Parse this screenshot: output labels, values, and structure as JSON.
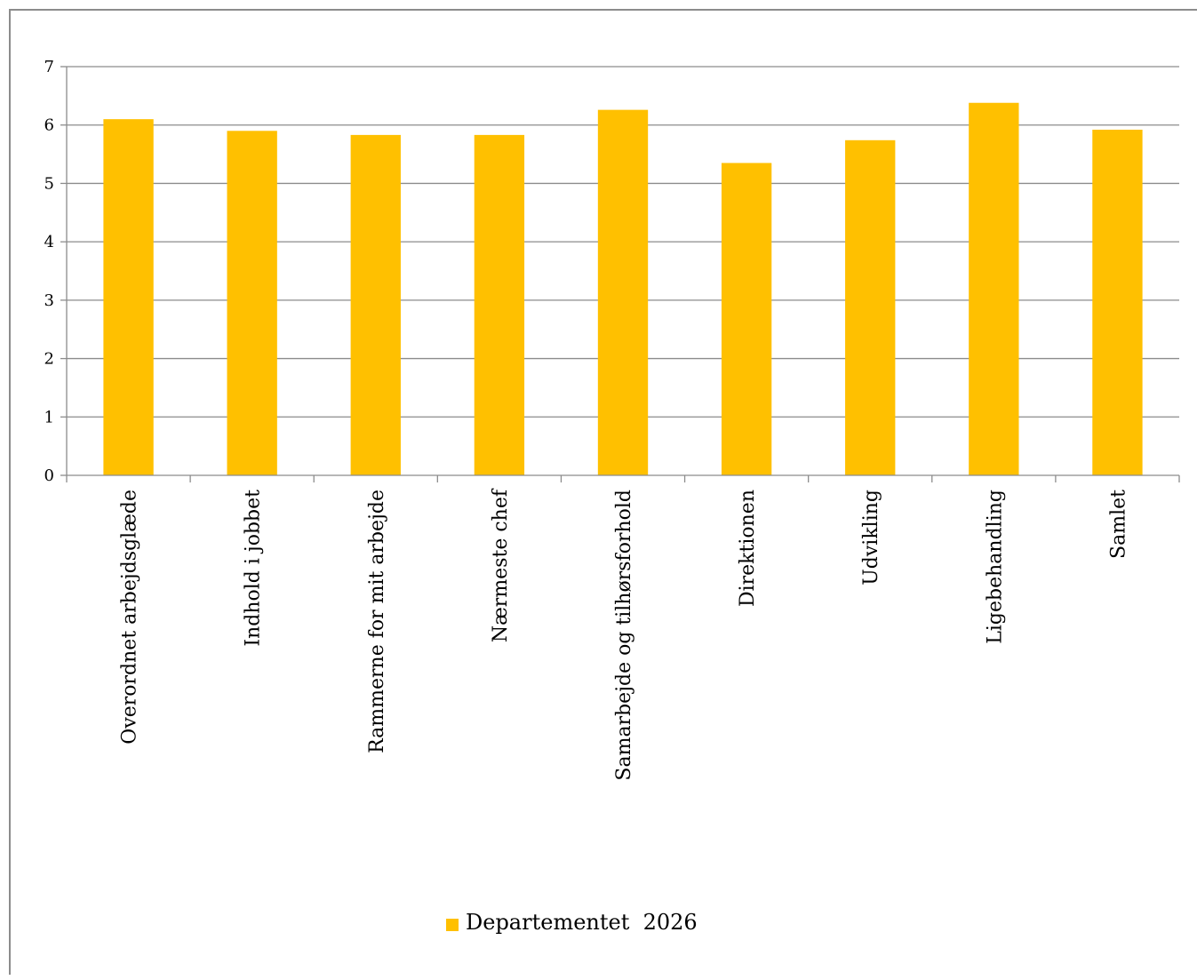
{
  "chart_data": {
    "type": "bar",
    "title": "",
    "xlabel": "",
    "ylabel": "",
    "ylim": [
      0,
      7
    ],
    "yticks": [
      "0",
      "1",
      "2",
      "3",
      "4",
      "5",
      "6",
      "7"
    ],
    "grid": true,
    "legend_position": "bottom",
    "categories": [
      "Overordnet arbejdsglæde",
      "Indhold i jobbet",
      "Rammerne for mit arbejde",
      "Nærmeste chef",
      "Samarbejde og tilhørsforhold",
      "Direktionen",
      "Udvikling",
      "Ligebehandling",
      "Samlet"
    ],
    "series": [
      {
        "name": "Departementet  2026",
        "color": "#FFC000",
        "values": [
          6.1,
          5.9,
          5.83,
          5.83,
          6.26,
          5.35,
          5.74,
          6.38,
          5.92
        ]
      }
    ]
  }
}
